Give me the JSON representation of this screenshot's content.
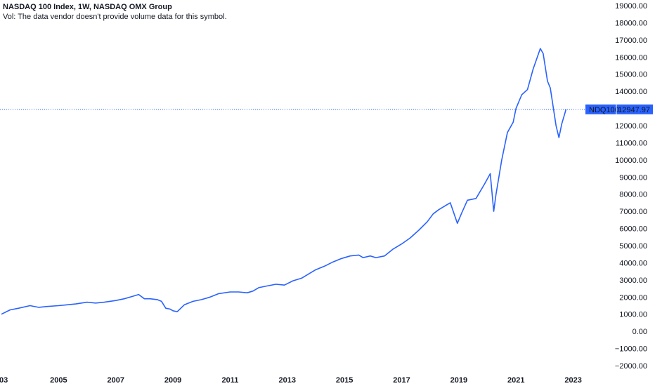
{
  "header": {
    "title": "NASDAQ 100 Index, 1W, NASDAQ OMX Group",
    "volume_note": "Vol: The data vendor doesn't provide volume data for this symbol."
  },
  "price_label": {
    "symbol": "NDQ100",
    "value": "12947.97"
  },
  "colors": {
    "line": "#2962ff",
    "badge_bg": "#2962ff",
    "badge_text": "#ffffff"
  },
  "chart_data": {
    "type": "line",
    "title": "NASDAQ 100 Index, 1W, NASDAQ OMX Group",
    "xlabel": "",
    "ylabel": "",
    "x_ticks": [
      "03",
      "2005",
      "2007",
      "2009",
      "2011",
      "2013",
      "2015",
      "2017",
      "2019",
      "2021",
      "2023"
    ],
    "y_ticks": [
      "19000.00",
      "18000.00",
      "17000.00",
      "16000.00",
      "15000.00",
      "14000.00",
      "13000.00",
      "12000.00",
      "11000.00",
      "10000.00",
      "9000.00",
      "8000.00",
      "7000.00",
      "6000.00",
      "5000.00",
      "4000.00",
      "3000.00",
      "2000.00",
      "1000.00",
      "0.00",
      "−1000.00",
      "−2000.00"
    ],
    "ylim": [
      -2000,
      19000
    ],
    "xlim": [
      2003.0,
      2023.6
    ],
    "grid": false,
    "last_value": 12947.97,
    "series": [
      {
        "x": [
          2003.0,
          2003.3,
          2003.6,
          2004.0,
          2004.3,
          2004.6,
          2005.0,
          2005.3,
          2005.6,
          2006.0,
          2006.3,
          2006.6,
          2007.0,
          2007.3,
          2007.6,
          2007.8,
          2008.0,
          2008.2,
          2008.45,
          2008.6,
          2008.75,
          2008.9,
          2009.0,
          2009.15,
          2009.4,
          2009.7,
          2010.0,
          2010.3,
          2010.6,
          2011.0,
          2011.3,
          2011.6,
          2011.8,
          2012.0,
          2012.3,
          2012.6,
          2012.9,
          2013.2,
          2013.5,
          2013.8,
          2014.0,
          2014.3,
          2014.6,
          2014.9,
          2015.2,
          2015.5,
          2015.65,
          2015.9,
          2016.1,
          2016.4,
          2016.7,
          2017.0,
          2017.3,
          2017.6,
          2017.9,
          2018.1,
          2018.3,
          2018.7,
          2018.95,
          2019.1,
          2019.3,
          2019.6,
          2019.9,
          2020.1,
          2020.22,
          2020.3,
          2020.5,
          2020.7,
          2020.9,
          2021.0,
          2021.2,
          2021.4,
          2021.6,
          2021.85,
          2021.95,
          2022.1,
          2022.2,
          2022.4,
          2022.5,
          2022.6,
          2022.75
        ],
        "y": [
          1000,
          1250,
          1350,
          1500,
          1400,
          1450,
          1500,
          1550,
          1600,
          1700,
          1650,
          1700,
          1800,
          1900,
          2050,
          2150,
          1900,
          1900,
          1850,
          1750,
          1350,
          1300,
          1200,
          1150,
          1550,
          1750,
          1850,
          2000,
          2200,
          2300,
          2300,
          2250,
          2350,
          2550,
          2650,
          2750,
          2700,
          2950,
          3100,
          3400,
          3600,
          3800,
          4050,
          4250,
          4400,
          4450,
          4300,
          4400,
          4300,
          4400,
          4800,
          5100,
          5450,
          5900,
          6400,
          6850,
          7100,
          7500,
          6300,
          6900,
          7650,
          7750,
          8600,
          9200,
          7000,
          8000,
          10000,
          11600,
          12200,
          13000,
          13800,
          14100,
          15300,
          16500,
          16200,
          14600,
          14200,
          12000,
          11300,
          12100,
          12947.97
        ]
      }
    ]
  }
}
